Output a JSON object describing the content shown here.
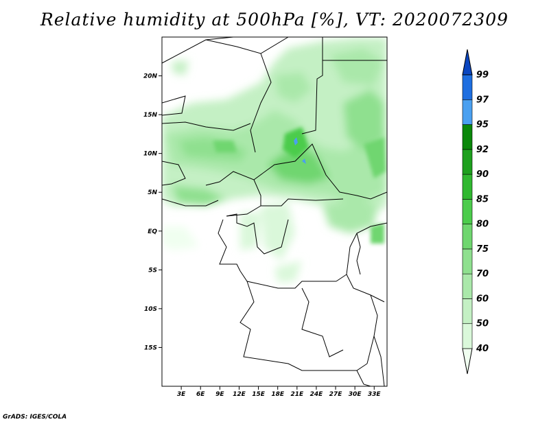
{
  "title": "Relative humidity at 500hPa [%], VT: 2020072309",
  "footer": "GrADS: IGES/COLA",
  "map": {
    "lon_range": [
      0,
      35
    ],
    "lat_range": [
      -20,
      25
    ],
    "lat_ticks": [
      {
        "label": "20N",
        "value": 20
      },
      {
        "label": "15N",
        "value": 15
      },
      {
        "label": "10N",
        "value": 10
      },
      {
        "label": "5N",
        "value": 5
      },
      {
        "label": "EQ",
        "value": 0
      },
      {
        "label": "5S",
        "value": -5
      },
      {
        "label": "10S",
        "value": -10
      },
      {
        "label": "15S",
        "value": -15
      }
    ],
    "lon_ticks": [
      {
        "label": "3E",
        "value": 3
      },
      {
        "label": "6E",
        "value": 6
      },
      {
        "label": "9E",
        "value": 9
      },
      {
        "label": "12E",
        "value": 12
      },
      {
        "label": "15E",
        "value": 15
      },
      {
        "label": "18E",
        "value": 18
      },
      {
        "label": "21E",
        "value": 21
      },
      {
        "label": "24E",
        "value": 24
      },
      {
        "label": "27E",
        "value": 27
      },
      {
        "label": "30E",
        "value": 30
      },
      {
        "label": "33E",
        "value": 33
      }
    ]
  },
  "colorbar": {
    "levels": [
      "40",
      "50",
      "60",
      "70",
      "75",
      "80",
      "85",
      "90",
      "92",
      "95",
      "97",
      "99"
    ],
    "colors": [
      "#f0fff0",
      "#daf8da",
      "#c4f0c4",
      "#aae8aa",
      "#8fe08f",
      "#6fd66f",
      "#4ccc4c",
      "#30b830",
      "#1ea01e",
      "#0a880a",
      "#4aa0f0",
      "#1e6ee0",
      "#0a46c0"
    ]
  }
}
